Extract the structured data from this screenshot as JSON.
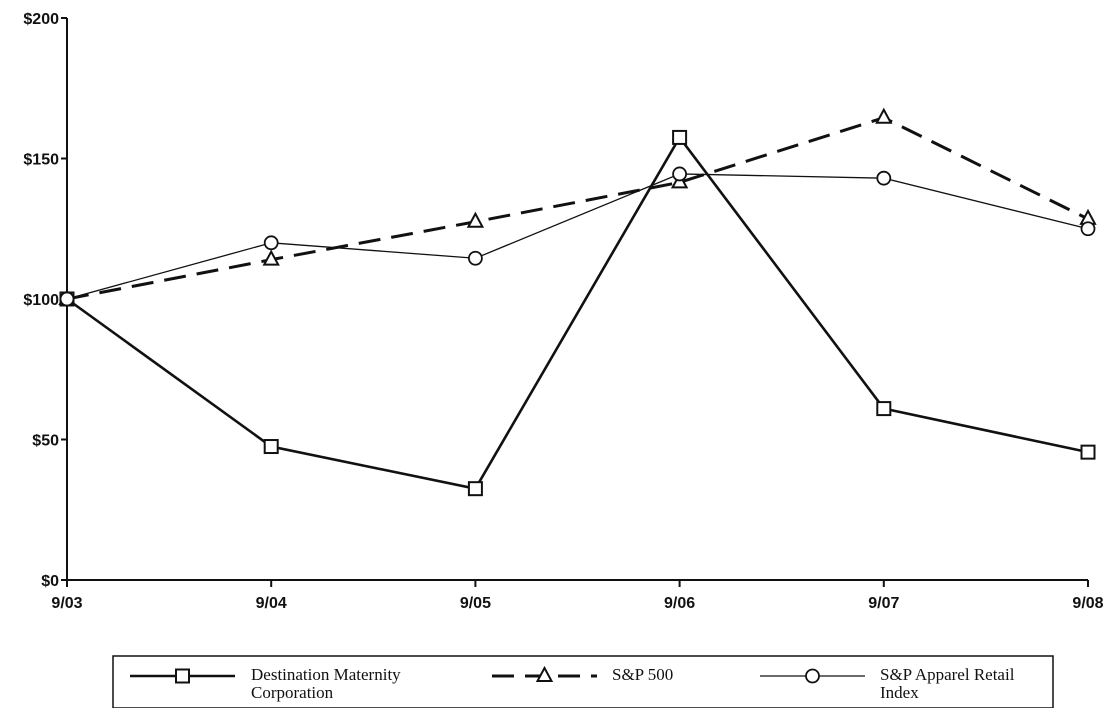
{
  "chart_data": {
    "type": "line",
    "title": "",
    "xlabel": "",
    "ylabel": "",
    "categories": [
      "9/03",
      "9/04",
      "9/05",
      "9/06",
      "9/07",
      "9/08"
    ],
    "ylim": [
      0,
      200
    ],
    "yticks": [
      0,
      50,
      100,
      150,
      200
    ],
    "ytick_labels": [
      "$0",
      "$50",
      "$100",
      "$150",
      "$200"
    ],
    "grid": false,
    "legend_position": "bottom",
    "series": [
      {
        "name": "Destination Maternity Corporation",
        "legend_lines": [
          "Destination Maternity",
          "Corporation"
        ],
        "marker": "square",
        "line_style": "solid-thick",
        "color": "#111111",
        "values": [
          100,
          47.5,
          32.5,
          157.5,
          61,
          45.5
        ]
      },
      {
        "name": "S&P 500",
        "legend_lines": [
          "S&P 500"
        ],
        "marker": "triangle",
        "line_style": "dashed",
        "color": "#111111",
        "values": [
          100,
          114,
          127.5,
          141.5,
          164.5,
          128.5
        ]
      },
      {
        "name": "S&P Apparel Retail Index",
        "legend_lines": [
          "S&P Apparel Retail",
          "Index"
        ],
        "marker": "circle",
        "line_style": "solid-thin",
        "color": "#111111",
        "values": [
          100,
          120,
          114.5,
          144.5,
          143,
          125
        ]
      }
    ]
  }
}
